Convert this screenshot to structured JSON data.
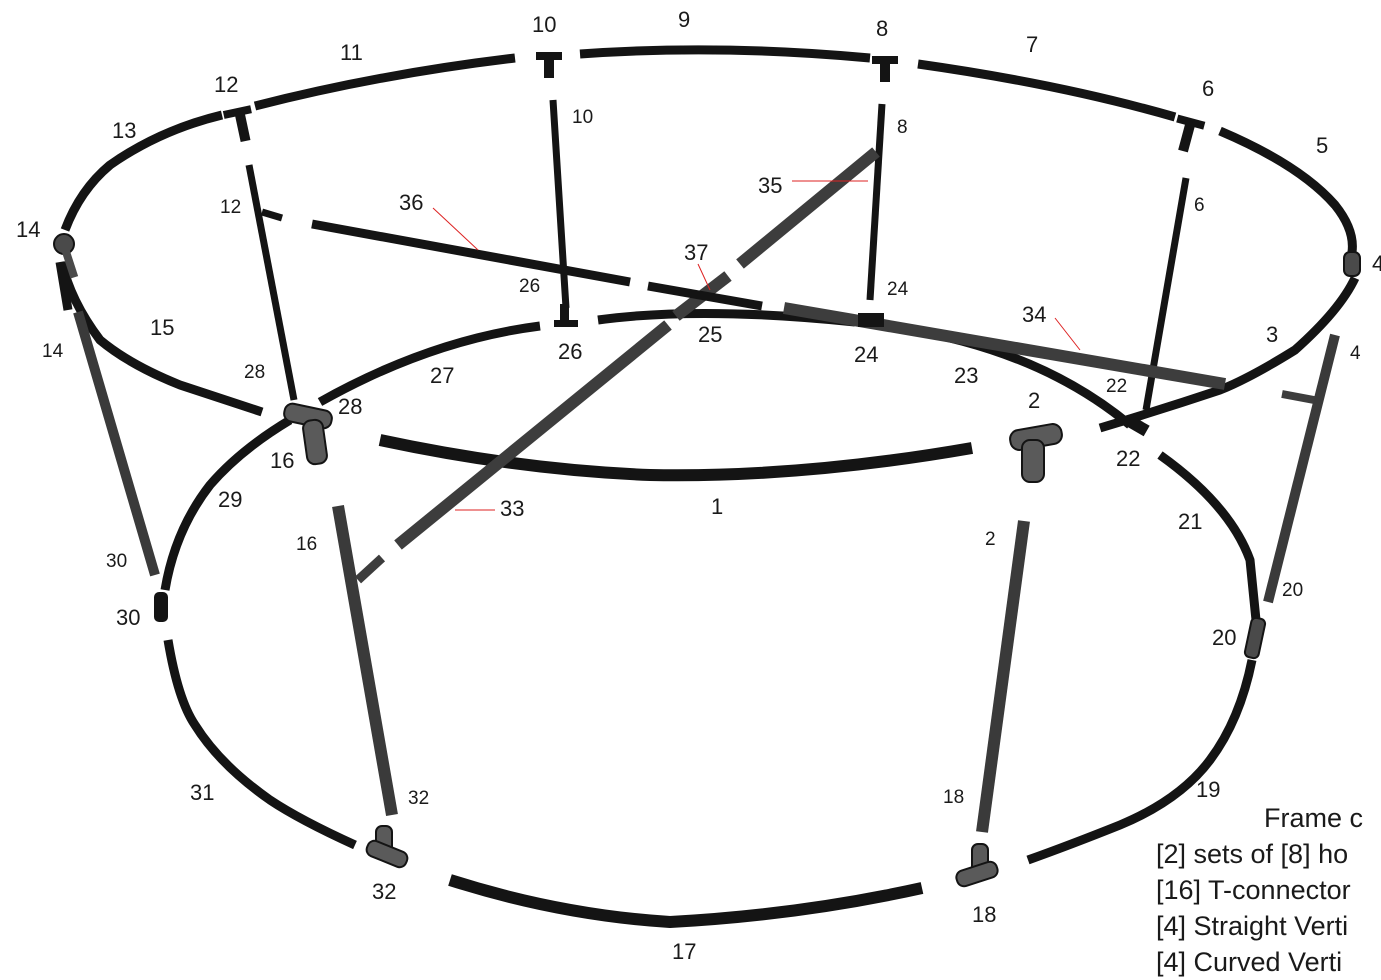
{
  "colors": {
    "tube_dark": "#141414",
    "tube_grey": "#4a4a4a",
    "tube_highlight": "#8a8a8a",
    "connector": "#5a5a5a",
    "leader_line": "#dd2222",
    "text": "#1a1a1a"
  },
  "labels": {
    "n1": "1",
    "n2": "2",
    "n3": "3",
    "n4": "4",
    "n5": "5",
    "n6": "6",
    "n7": "7",
    "n8": "8",
    "n9": "9",
    "n10": "10",
    "n11": "11",
    "n12": "12",
    "n13": "13",
    "n14": "14",
    "n15": "15",
    "n16": "16",
    "n17": "17",
    "n18": "18",
    "n19": "19",
    "n20": "20",
    "n21": "21",
    "n22": "22",
    "n23": "23",
    "n24": "24",
    "n25": "25",
    "n26": "26",
    "n27": "27",
    "n28": "28",
    "n29": "29",
    "n30": "30",
    "n31": "31",
    "n32": "32",
    "n33": "33",
    "n34": "34",
    "n35": "35",
    "n36": "36",
    "n37": "37"
  },
  "notes": {
    "title": "Frame c",
    "line1": "[2] sets of [8] ho",
    "line2": "[16] T-connector",
    "line3": "[4] Straight Verti",
    "line4": "[4] Curved Verti"
  }
}
